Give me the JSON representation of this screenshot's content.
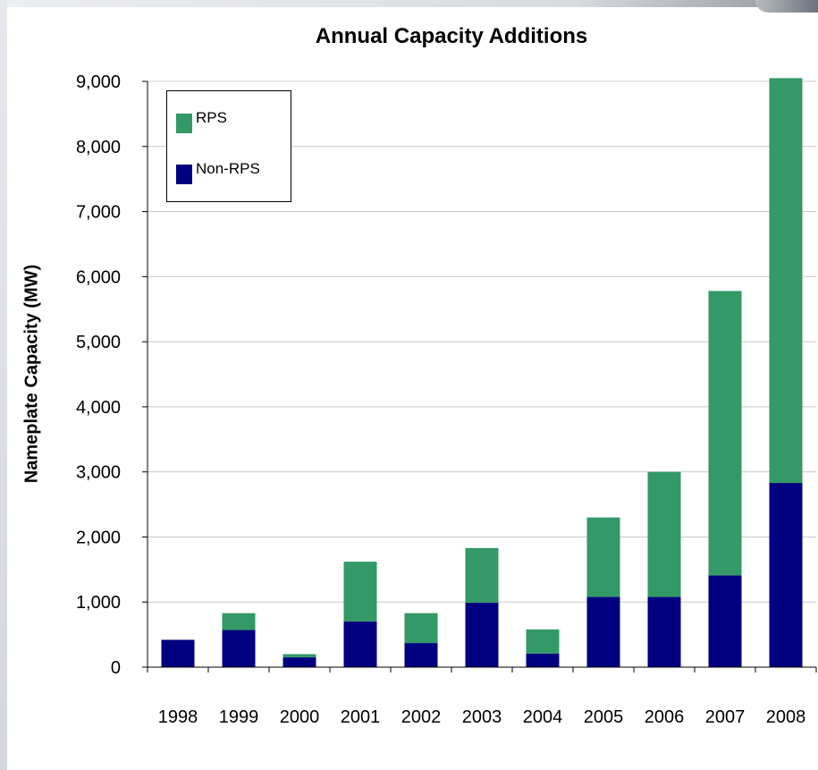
{
  "chart_data": {
    "type": "bar",
    "stacked": true,
    "title": "Annual Capacity Additions",
    "xlabel": "",
    "ylabel": "Nameplate Capacity (MW)",
    "categories": [
      "1998",
      "1999",
      "2000",
      "2001",
      "2002",
      "2003",
      "2004",
      "2005",
      "2006",
      "2007",
      "2008"
    ],
    "series": [
      {
        "name": "Non-RPS",
        "color": "#000080",
        "values": [
          420,
          570,
          150,
          700,
          370,
          990,
          210,
          1080,
          1080,
          1410,
          2830
        ]
      },
      {
        "name": "RPS",
        "color": "#339966",
        "values": [
          0,
          260,
          50,
          920,
          460,
          840,
          370,
          1220,
          1920,
          4370,
          6220
        ]
      }
    ],
    "ylim": [
      0,
      9000
    ],
    "yticks": [
      "0",
      "1,000",
      "2,000",
      "3,000",
      "4,000",
      "5,000",
      "6,000",
      "7,000",
      "8,000",
      "9,000"
    ],
    "ytick_values": [
      0,
      1000,
      2000,
      3000,
      4000,
      5000,
      6000,
      7000,
      8000,
      9000
    ],
    "grid": true,
    "legend_position": "top-left"
  }
}
